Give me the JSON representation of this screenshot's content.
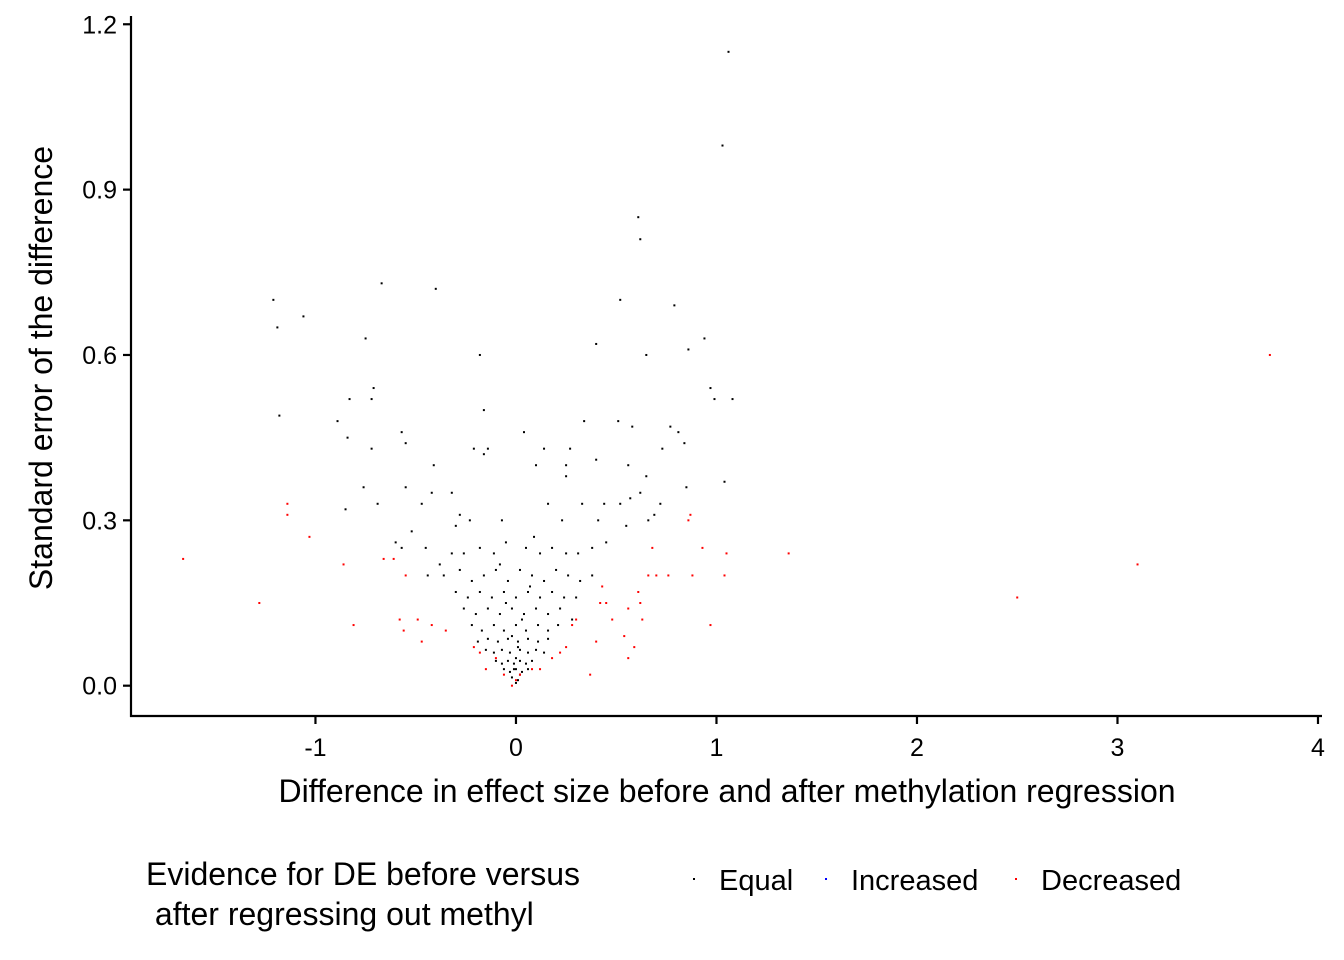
{
  "chart_data": {
    "type": "scatter",
    "xlabel": "Difference in effect size before and after methylation regression",
    "ylabel": "Standard error of the difference",
    "xlim": [
      -1.92,
      4.02
    ],
    "ylim": [
      -0.055,
      1.215
    ],
    "x_ticks": [
      -1,
      0,
      1,
      2,
      3,
      4
    ],
    "y_ticks": [
      0.0,
      0.3,
      0.6,
      0.9,
      1.2
    ],
    "x_tick_labels": [
      "-1",
      "0",
      "1",
      "2",
      "3",
      "4"
    ],
    "y_tick_labels": [
      "0.0",
      "0.3",
      "0.6",
      "0.9",
      "1.2"
    ],
    "grid": false,
    "legend": {
      "title_lines": [
        "Evidence for DE before versus",
        " after regressing out methyl"
      ],
      "placement": "bottom",
      "entries": [
        {
          "label": "Equal",
          "color": "#000000"
        },
        {
          "label": "Increased",
          "color": "#0000ff"
        },
        {
          "label": "Decreased",
          "color": "#ff0000"
        }
      ]
    },
    "series": [
      {
        "name": "Equal",
        "color": "#000000",
        "points": [
          [
            1.06,
            1.15
          ],
          [
            1.03,
            0.98
          ],
          [
            0.61,
            0.85
          ],
          [
            0.62,
            0.81
          ],
          [
            -1.21,
            0.7
          ],
          [
            -0.67,
            0.73
          ],
          [
            -0.4,
            0.72
          ],
          [
            0.52,
            0.7
          ],
          [
            0.79,
            0.69
          ],
          [
            -1.06,
            0.67
          ],
          [
            -1.19,
            0.65
          ],
          [
            -0.75,
            0.63
          ],
          [
            0.94,
            0.63
          ],
          [
            0.4,
            0.62
          ],
          [
            -0.18,
            0.6
          ],
          [
            0.65,
            0.6
          ],
          [
            0.86,
            0.61
          ],
          [
            0.97,
            0.54
          ],
          [
            -0.71,
            0.54
          ],
          [
            -0.72,
            0.52
          ],
          [
            0.99,
            0.52
          ],
          [
            1.08,
            0.52
          ],
          [
            -0.83,
            0.52
          ],
          [
            -1.18,
            0.49
          ],
          [
            -0.16,
            0.5
          ],
          [
            -0.89,
            0.48
          ],
          [
            0.34,
            0.48
          ],
          [
            0.51,
            0.48
          ],
          [
            0.58,
            0.47
          ],
          [
            0.77,
            0.47
          ],
          [
            0.81,
            0.46
          ],
          [
            0.04,
            0.46
          ],
          [
            -0.57,
            0.46
          ],
          [
            -0.84,
            0.45
          ],
          [
            -0.14,
            0.43
          ],
          [
            -0.72,
            0.43
          ],
          [
            0.14,
            0.43
          ],
          [
            0.27,
            0.43
          ],
          [
            0.84,
            0.44
          ],
          [
            0.73,
            0.43
          ],
          [
            -0.55,
            0.44
          ],
          [
            -0.21,
            0.43
          ],
          [
            -0.16,
            0.42
          ],
          [
            0.4,
            0.41
          ],
          [
            0.56,
            0.4
          ],
          [
            0.25,
            0.4
          ],
          [
            -0.41,
            0.4
          ],
          [
            0.25,
            0.38
          ],
          [
            0.1,
            0.4
          ],
          [
            0.65,
            0.38
          ],
          [
            1.04,
            0.37
          ],
          [
            0.85,
            0.36
          ],
          [
            -0.76,
            0.36
          ],
          [
            -0.55,
            0.36
          ],
          [
            -0.32,
            0.35
          ],
          [
            -0.42,
            0.35
          ],
          [
            -0.69,
            0.33
          ],
          [
            -0.85,
            0.32
          ],
          [
            -0.47,
            0.33
          ],
          [
            0.44,
            0.33
          ],
          [
            0.52,
            0.33
          ],
          [
            0.62,
            0.35
          ],
          [
            0.72,
            0.33
          ],
          [
            0.69,
            0.31
          ],
          [
            0.57,
            0.34
          ],
          [
            0.33,
            0.33
          ],
          [
            0.16,
            0.33
          ],
          [
            -0.23,
            0.3
          ],
          [
            -0.28,
            0.31
          ],
          [
            -0.3,
            0.29
          ],
          [
            -0.07,
            0.3
          ],
          [
            -0.52,
            0.28
          ],
          [
            0.41,
            0.3
          ],
          [
            0.55,
            0.29
          ],
          [
            0.66,
            0.3
          ],
          [
            0.23,
            0.3
          ],
          [
            -0.6,
            0.26
          ],
          [
            -0.57,
            0.25
          ],
          [
            -0.45,
            0.25
          ],
          [
            -0.38,
            0.22
          ],
          [
            -0.32,
            0.24
          ],
          [
            -0.26,
            0.24
          ],
          [
            -0.18,
            0.25
          ],
          [
            -0.11,
            0.24
          ],
          [
            -0.05,
            0.26
          ],
          [
            0.05,
            0.25
          ],
          [
            0.12,
            0.24
          ],
          [
            0.18,
            0.25
          ],
          [
            0.25,
            0.24
          ],
          [
            0.31,
            0.24
          ],
          [
            0.38,
            0.25
          ],
          [
            0.45,
            0.26
          ],
          [
            -0.44,
            0.2
          ],
          [
            -0.36,
            0.2
          ],
          [
            -0.28,
            0.21
          ],
          [
            -0.22,
            0.19
          ],
          [
            -0.16,
            0.2
          ],
          [
            -0.1,
            0.21
          ],
          [
            -0.04,
            0.19
          ],
          [
            0.02,
            0.21
          ],
          [
            0.08,
            0.2
          ],
          [
            0.14,
            0.19
          ],
          [
            0.2,
            0.21
          ],
          [
            0.26,
            0.2
          ],
          [
            0.32,
            0.19
          ],
          [
            0.38,
            0.2
          ],
          [
            -0.3,
            0.17
          ],
          [
            -0.24,
            0.16
          ],
          [
            -0.18,
            0.17
          ],
          [
            -0.12,
            0.16
          ],
          [
            -0.06,
            0.17
          ],
          [
            0.0,
            0.16
          ],
          [
            0.06,
            0.17
          ],
          [
            0.12,
            0.16
          ],
          [
            0.18,
            0.17
          ],
          [
            0.24,
            0.16
          ],
          [
            0.3,
            0.16
          ],
          [
            -0.26,
            0.14
          ],
          [
            -0.2,
            0.13
          ],
          [
            -0.14,
            0.14
          ],
          [
            -0.08,
            0.13
          ],
          [
            -0.02,
            0.14
          ],
          [
            0.04,
            0.13
          ],
          [
            0.1,
            0.14
          ],
          [
            0.16,
            0.13
          ],
          [
            0.22,
            0.14
          ],
          [
            0.28,
            0.12
          ],
          [
            -0.22,
            0.11
          ],
          [
            -0.17,
            0.1
          ],
          [
            -0.11,
            0.11
          ],
          [
            -0.06,
            0.1
          ],
          [
            0.0,
            0.11
          ],
          [
            0.05,
            0.1
          ],
          [
            0.11,
            0.11
          ],
          [
            0.16,
            0.1
          ],
          [
            0.21,
            0.11
          ],
          [
            -0.19,
            0.08
          ],
          [
            -0.14,
            0.085
          ],
          [
            -0.09,
            0.08
          ],
          [
            -0.04,
            0.085
          ],
          [
            0.01,
            0.08
          ],
          [
            0.06,
            0.085
          ],
          [
            0.11,
            0.08
          ],
          [
            0.16,
            0.085
          ],
          [
            -0.15,
            0.065
          ],
          [
            -0.11,
            0.06
          ],
          [
            -0.07,
            0.065
          ],
          [
            -0.03,
            0.06
          ],
          [
            0.02,
            0.065
          ],
          [
            0.06,
            0.06
          ],
          [
            0.1,
            0.065
          ],
          [
            0.14,
            0.06
          ],
          [
            -0.1,
            0.045
          ],
          [
            -0.07,
            0.04
          ],
          [
            -0.04,
            0.045
          ],
          [
            -0.01,
            0.04
          ],
          [
            0.02,
            0.045
          ],
          [
            0.05,
            0.04
          ],
          [
            0.08,
            0.045
          ],
          [
            -0.06,
            0.03
          ],
          [
            -0.03,
            0.025
          ],
          [
            0.0,
            0.03
          ],
          [
            0.03,
            0.025
          ],
          [
            0.06,
            0.03
          ],
          [
            -0.02,
            0.015
          ],
          [
            0.01,
            0.01
          ],
          [
            0.0,
            0.005
          ],
          [
            0.02,
            0.02
          ],
          [
            -0.01,
            0.03
          ],
          [
            0.0,
            0.05
          ],
          [
            0.01,
            0.07
          ],
          [
            -0.02,
            0.09
          ],
          [
            0.03,
            0.12
          ],
          [
            -0.05,
            0.15
          ],
          [
            0.07,
            0.18
          ],
          [
            -0.08,
            0.22
          ],
          [
            0.09,
            0.27
          ]
        ]
      },
      {
        "name": "Increased",
        "color": "#0000ff",
        "points": []
      },
      {
        "name": "Decreased",
        "color": "#ff0000",
        "points": [
          [
            3.76,
            0.6
          ],
          [
            3.1,
            0.22
          ],
          [
            2.5,
            0.16
          ],
          [
            1.36,
            0.24
          ],
          [
            1.05,
            0.24
          ],
          [
            1.04,
            0.2
          ],
          [
            0.93,
            0.25
          ],
          [
            0.97,
            0.11
          ],
          [
            0.87,
            0.31
          ],
          [
            0.86,
            0.3
          ],
          [
            0.88,
            0.2
          ],
          [
            0.76,
            0.2
          ],
          [
            0.68,
            0.25
          ],
          [
            0.66,
            0.2
          ],
          [
            0.7,
            0.2
          ],
          [
            0.63,
            0.12
          ],
          [
            0.61,
            0.17
          ],
          [
            0.62,
            0.15
          ],
          [
            0.56,
            0.14
          ],
          [
            0.56,
            0.05
          ],
          [
            0.59,
            0.07
          ],
          [
            0.54,
            0.09
          ],
          [
            0.45,
            0.15
          ],
          [
            0.48,
            0.12
          ],
          [
            0.42,
            0.15
          ],
          [
            0.43,
            0.18
          ],
          [
            0.4,
            0.08
          ],
          [
            0.37,
            0.02
          ],
          [
            0.3,
            0.12
          ],
          [
            0.28,
            0.11
          ],
          [
            0.25,
            0.07
          ],
          [
            0.22,
            0.06
          ],
          [
            0.18,
            0.05
          ],
          [
            0.12,
            0.03
          ],
          [
            0.08,
            0.03
          ],
          [
            -1.66,
            0.23
          ],
          [
            -1.28,
            0.15
          ],
          [
            -1.14,
            0.33
          ],
          [
            -1.14,
            0.31
          ],
          [
            -1.03,
            0.27
          ],
          [
            -0.86,
            0.22
          ],
          [
            -0.81,
            0.11
          ],
          [
            -0.66,
            0.23
          ],
          [
            -0.61,
            0.23
          ],
          [
            -0.55,
            0.2
          ],
          [
            -0.58,
            0.12
          ],
          [
            -0.56,
            0.1
          ],
          [
            -0.49,
            0.12
          ],
          [
            -0.47,
            0.08
          ],
          [
            -0.42,
            0.11
          ],
          [
            -0.35,
            0.1
          ],
          [
            -0.21,
            0.07
          ],
          [
            -0.18,
            0.06
          ],
          [
            -0.15,
            0.03
          ],
          [
            -0.1,
            0.05
          ],
          [
            -0.06,
            0.02
          ],
          [
            0.0,
            0.01
          ],
          [
            0.02,
            0.02
          ],
          [
            -0.02,
            0.0
          ]
        ]
      }
    ]
  }
}
